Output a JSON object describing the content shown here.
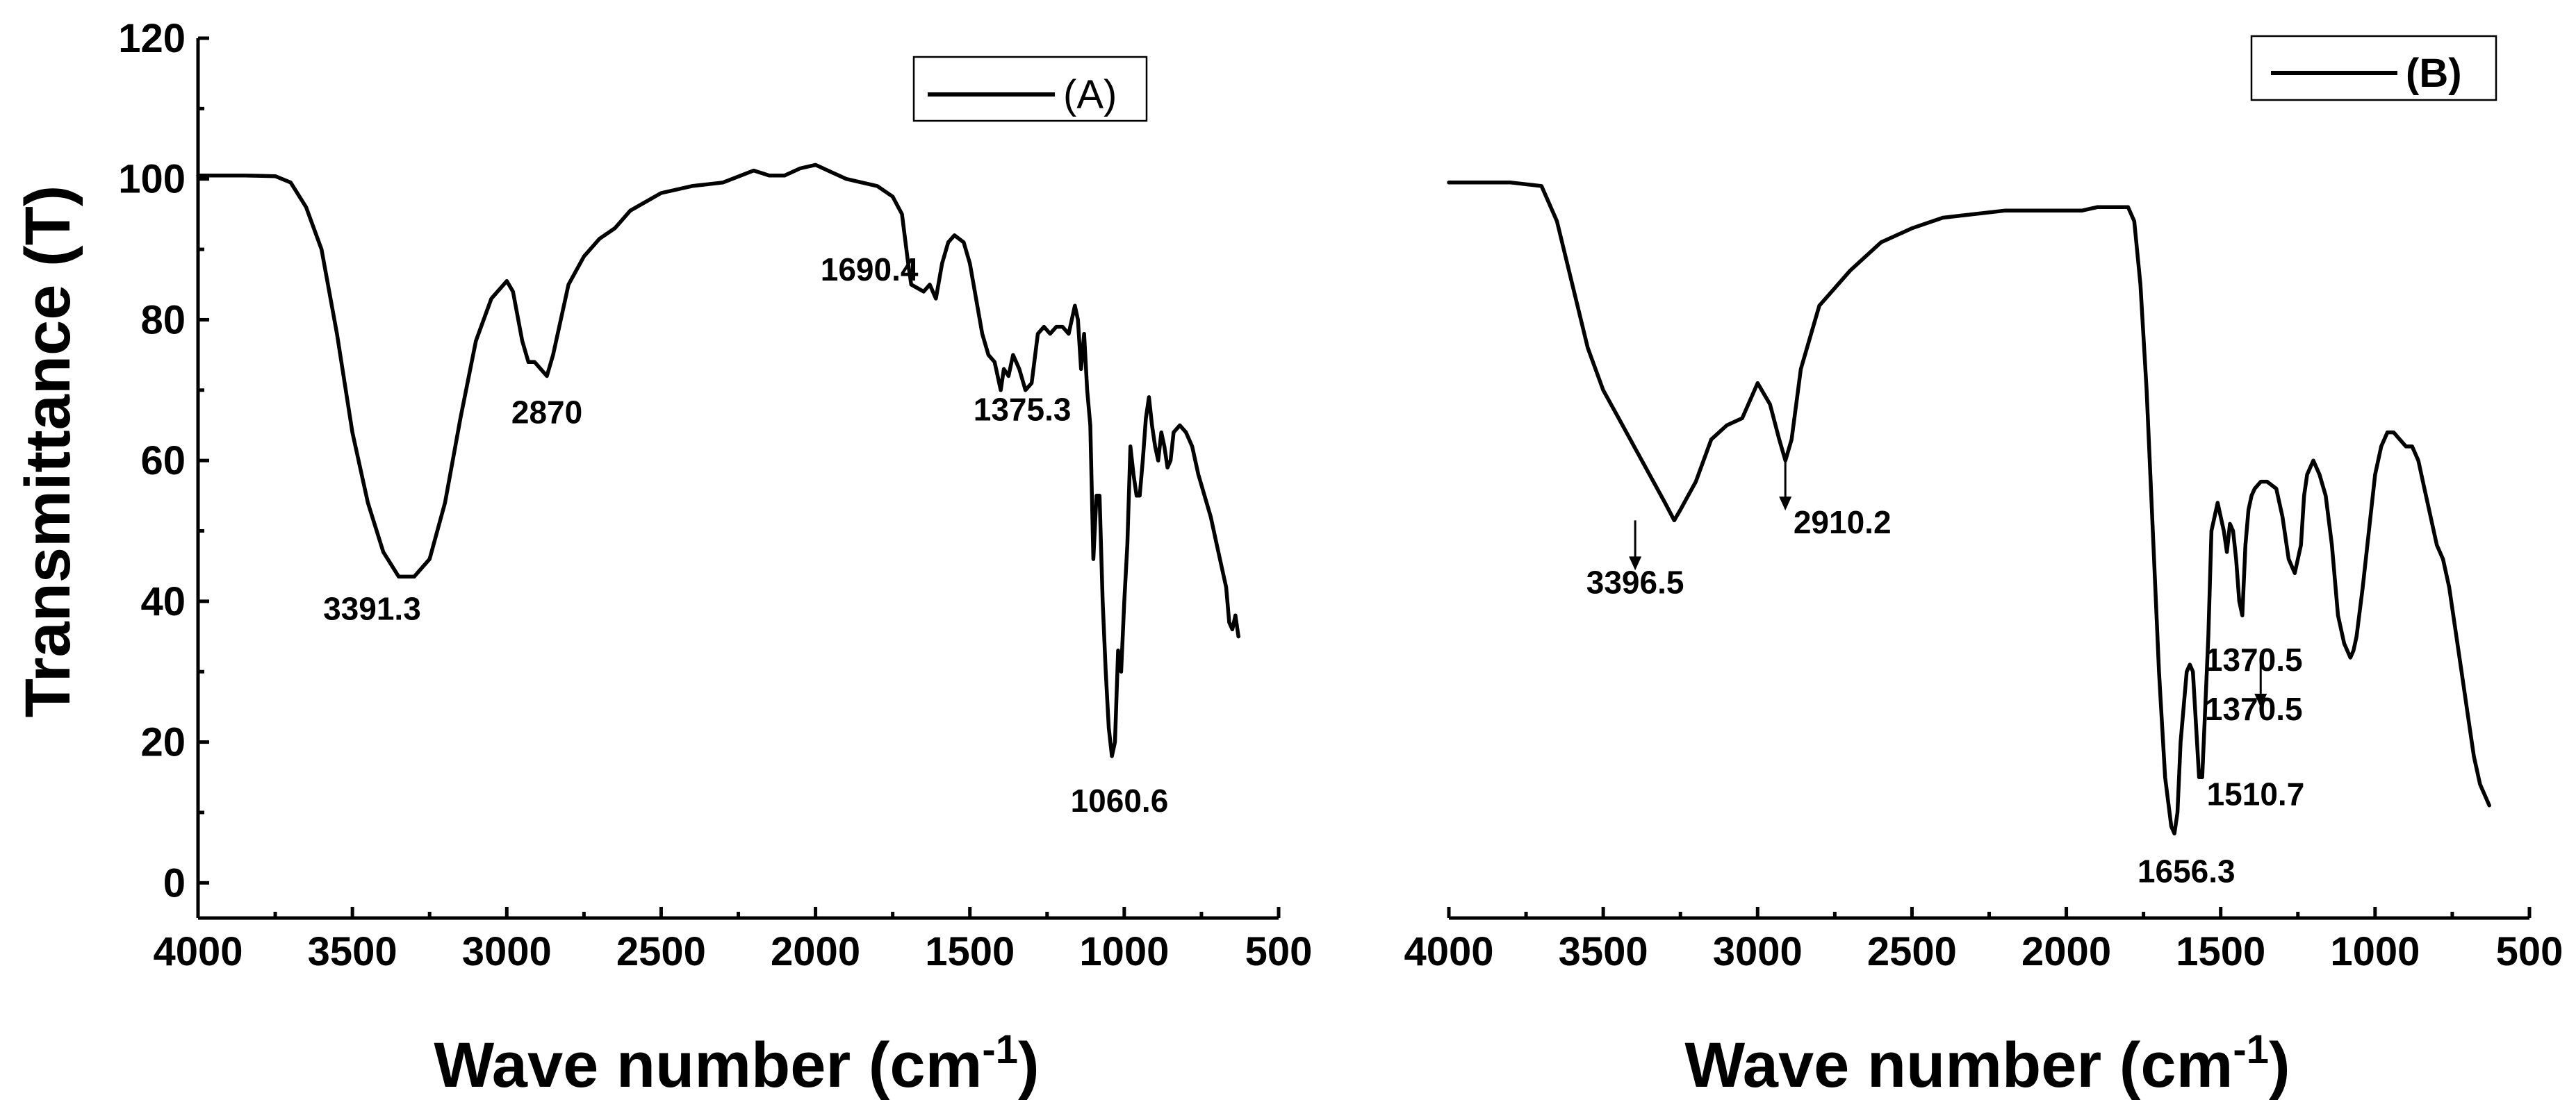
{
  "chart_data": [
    {
      "type": "line",
      "panel": "A",
      "title": "",
      "xlabel": "Wave number (cm",
      "xlabel_sup": "-1",
      "xlabel_close": ")",
      "ylabel": "Transmittance (T)",
      "xlim": [
        4000,
        500
      ],
      "ylim": [
        -5,
        120
      ],
      "x_ticks": [
        4000,
        3500,
        3000,
        2500,
        2000,
        1500,
        1000,
        500
      ],
      "y_ticks": [
        0,
        20,
        40,
        60,
        80,
        100,
        120
      ],
      "legend": {
        "label": "(A)",
        "position": "top-right"
      },
      "series": [
        {
          "name": "(A)",
          "x": [
            4000,
            3850,
            3750,
            3700,
            3650,
            3600,
            3550,
            3500,
            3450,
            3400,
            3350,
            3300,
            3250,
            3200,
            3150,
            3100,
            3050,
            3000,
            2980,
            2950,
            2930,
            2910,
            2890,
            2870,
            2850,
            2800,
            2750,
            2700,
            2650,
            2600,
            2500,
            2400,
            2300,
            2200,
            2150,
            2100,
            2050,
            2000,
            1950,
            1900,
            1850,
            1800,
            1750,
            1720,
            1700,
            1690,
            1670,
            1650,
            1630,
            1610,
            1590,
            1570,
            1550,
            1520,
            1500,
            1480,
            1460,
            1440,
            1420,
            1400,
            1390,
            1375,
            1360,
            1340,
            1320,
            1300,
            1280,
            1260,
            1240,
            1220,
            1200,
            1180,
            1160,
            1150,
            1140,
            1130,
            1120,
            1110,
            1100,
            1090,
            1080,
            1070,
            1060,
            1050,
            1040,
            1030,
            1020,
            1010,
            1000,
            990,
            980,
            970,
            960,
            950,
            940,
            930,
            920,
            910,
            900,
            890,
            880,
            870,
            860,
            850,
            840,
            820,
            800,
            780,
            760,
            740,
            720,
            700,
            680,
            670,
            660,
            650,
            640,
            630
          ],
          "values": [
            100.5,
            100.5,
            100.4,
            99.5,
            96,
            90,
            78,
            64,
            54,
            47,
            43.5,
            43.5,
            46,
            54,
            66,
            77,
            83,
            85.5,
            84,
            77,
            74,
            74,
            73,
            72,
            75,
            85,
            89,
            91.5,
            93,
            95.5,
            98,
            99,
            99.5,
            101.2,
            100.5,
            100.5,
            101.5,
            102,
            101,
            100,
            99.5,
            99,
            97.5,
            95,
            88,
            85,
            84.5,
            84,
            85,
            83,
            88,
            91,
            92,
            91,
            88,
            83,
            78,
            75,
            74,
            70,
            73,
            72,
            75,
            73,
            70,
            71,
            78,
            79,
            78,
            79,
            79,
            78,
            82,
            80,
            73,
            78,
            70,
            65,
            46,
            55,
            55,
            40,
            30,
            22,
            18,
            20,
            33,
            30,
            40,
            48,
            62,
            58,
            55,
            55,
            60,
            66,
            69,
            65,
            62,
            60,
            64,
            62,
            59,
            60,
            64,
            65,
            64,
            62,
            58,
            55,
            52,
            48,
            44,
            42,
            37,
            36,
            38,
            35
          ]
        }
      ],
      "annotations": [
        {
          "text": "3391.3",
          "x": 3391.3,
          "y": 43.5
        },
        {
          "text": "2870",
          "x": 2870,
          "y": 72
        },
        {
          "text": "1690.4",
          "x": 1690.4,
          "y": 85
        },
        {
          "text": "1375.3",
          "x": 1375.3,
          "y": 72
        },
        {
          "text": "1060.6",
          "x": 1060.6,
          "y": 18
        }
      ]
    },
    {
      "type": "line",
      "panel": "B",
      "title": "",
      "xlabel": "Wave number (cm",
      "xlabel_sup": "-1",
      "xlabel_close": ")",
      "ylabel": "",
      "xlim": [
        4000,
        500
      ],
      "ylim": [
        -5,
        120
      ],
      "x_ticks": [
        4000,
        3500,
        3000,
        2500,
        2000,
        1500,
        1000,
        500
      ],
      "legend": {
        "label": "(B)",
        "position": "top-right"
      },
      "series": [
        {
          "name": "(B)",
          "x": [
            4000,
            3800,
            3700,
            3650,
            3600,
            3550,
            3500,
            3450,
            3400,
            3350,
            3300,
            3270,
            3250,
            3200,
            3150,
            3100,
            3050,
            3000,
            2960,
            2930,
            2910,
            2890,
            2860,
            2800,
            2700,
            2600,
            2500,
            2400,
            2300,
            2200,
            2100,
            2000,
            1950,
            1900,
            1850,
            1800,
            1780,
            1760,
            1740,
            1720,
            1700,
            1680,
            1660,
            1650,
            1640,
            1630,
            1610,
            1600,
            1590,
            1570,
            1560,
            1540,
            1530,
            1510,
            1500,
            1490,
            1480,
            1470,
            1460,
            1450,
            1440,
            1430,
            1420,
            1410,
            1400,
            1390,
            1370,
            1350,
            1320,
            1300,
            1280,
            1260,
            1240,
            1230,
            1220,
            1200,
            1180,
            1160,
            1140,
            1120,
            1100,
            1080,
            1070,
            1060,
            1040,
            1020,
            1000,
            980,
            960,
            940,
            920,
            900,
            880,
            860,
            840,
            820,
            800,
            780,
            760,
            740,
            720,
            700,
            680,
            660,
            640,
            630
          ],
          "values": [
            99.5,
            99.5,
            99,
            94,
            85,
            76,
            70,
            66,
            62,
            58,
            54,
            51.5,
            53,
            57,
            63,
            65,
            66,
            71,
            68,
            63,
            60,
            63,
            73,
            82,
            87,
            91,
            93,
            94.5,
            95,
            95.5,
            95.5,
            95.5,
            95.5,
            96,
            96,
            96,
            94,
            85,
            70,
            50,
            30,
            15,
            8,
            7,
            10,
            20,
            30,
            31,
            30,
            15,
            15,
            35,
            50,
            54,
            52,
            50,
            47,
            51,
            50,
            46,
            40,
            38,
            48,
            53,
            55,
            56,
            57,
            57,
            56,
            52,
            46,
            44,
            48,
            55,
            58,
            60,
            58,
            55,
            48,
            38,
            34,
            32,
            33,
            35,
            42,
            50,
            58,
            62,
            64,
            64,
            63,
            62,
            62,
            60,
            56,
            52,
            48,
            46,
            42,
            36,
            30,
            24,
            18,
            14,
            12,
            11
          ]
        }
      ],
      "annotations": [
        {
          "text": "3396.5",
          "x": 3396.5,
          "y": 51.5,
          "arrow": true
        },
        {
          "text": "2910.2",
          "x": 2910.2,
          "y": 60,
          "arrow": true
        },
        {
          "text": "1656.3",
          "x": 1656.3,
          "y": 7
        },
        {
          "text": "1510.7",
          "x": 1510.7,
          "y": 15
        },
        {
          "text": "1370.5",
          "x": 1370.5,
          "y": 38
        },
        {
          "text": "1370.5",
          "x": 1370.5,
          "y": 32,
          "arrow": true
        }
      ]
    }
  ]
}
